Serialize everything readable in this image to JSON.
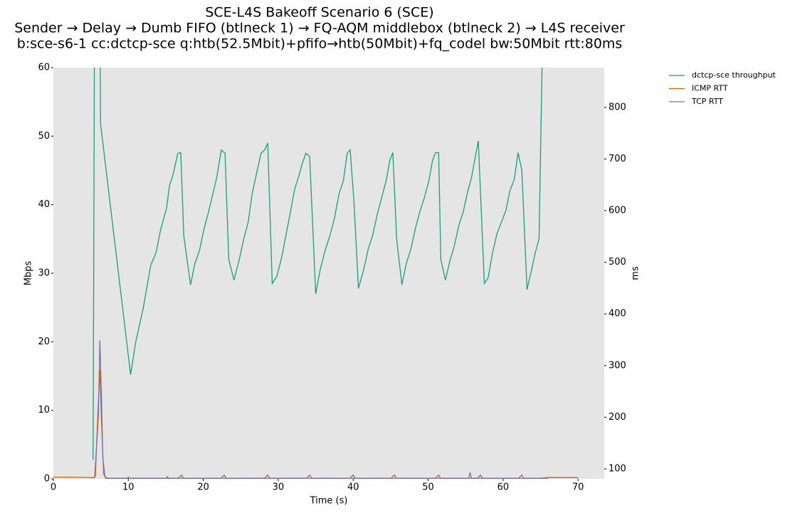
{
  "chart_data": {
    "type": "line",
    "title": [
      "SCE-L4S Bakeoff Scenario 6 (SCE)",
      "Sender → Delay → Dumb FIFO (btlneck 1) → FQ-AQM middlebox (btlneck 2) → L4S receiver",
      "b:sce-s6-1 cc:dctcp-sce q:htb(52.5Mbit)+pfifo→htb(50Mbit)+fq_codel bw:50Mbit rtt:80ms"
    ],
    "xlabel": "Time (s)",
    "ylabel": "Mbps",
    "y2label": "ms",
    "xlim": [
      0,
      73.5
    ],
    "ylim": [
      0,
      60
    ],
    "y2lim": [
      80.7,
      877
    ],
    "xticks": [
      0,
      10,
      20,
      30,
      40,
      50,
      60,
      70
    ],
    "yticks": [
      0,
      10,
      20,
      30,
      40,
      50,
      60
    ],
    "y2ticks": [
      100,
      200,
      300,
      400,
      500,
      600,
      700,
      800
    ],
    "legend": "outside-right",
    "series": [
      {
        "name": "dctcp-sce throughput",
        "color": "#1b9e77",
        "axis": "y",
        "x": [
          5.3,
          5.5,
          6.2,
          6.3,
          10.3,
          11,
          12,
          13,
          13.7,
          14.3,
          15.1,
          15.5,
          16,
          16.6,
          17.0,
          17.4,
          18.3,
          18.9,
          19.5,
          20.1,
          20.6,
          21.2,
          21.8,
          22.4,
          22.9,
          23.4,
          24.1,
          24.8,
          25.4,
          26,
          26.5,
          27.1,
          27.7,
          28.2,
          28.6,
          29.2,
          29.8,
          30.4,
          31,
          31.6,
          32.2,
          32.7,
          33.2,
          33.7,
          34.2,
          35.0,
          35.6,
          36.3,
          36.9,
          37.5,
          38.1,
          38.7,
          39.2,
          39.6,
          40.1,
          40.7,
          41.4,
          42,
          42.6,
          43.2,
          43.8,
          44.4,
          44.9,
          45.3,
          45.8,
          46.5,
          47.1,
          47.7,
          48.3,
          48.9,
          49.5,
          50.1,
          50.6,
          51.0,
          51.4,
          51.7,
          52.3,
          52.9,
          53.5,
          54.1,
          54.7,
          55.3,
          55.8,
          56.3,
          56.7,
          57.5,
          58.0,
          58.6,
          59.2,
          59.8,
          60.4,
          60.9,
          61.5,
          62.0,
          62.5,
          63.2,
          63.8,
          64.3,
          64.8,
          65.2,
          65.5
        ],
        "values": [
          2.8,
          70,
          70,
          51.8,
          15.2,
          20,
          25,
          31.2,
          33,
          36.3,
          39.5,
          42.8,
          44.5,
          47.5,
          47.6,
          35.5,
          28.3,
          31.5,
          33.3,
          36.5,
          38.5,
          41.2,
          44,
          48,
          47.5,
          32,
          29,
          32,
          35,
          37.5,
          41.5,
          44.5,
          47.5,
          48,
          49,
          28.5,
          29.5,
          32,
          35.3,
          38.8,
          42.3,
          44,
          46,
          47.5,
          47,
          27,
          30.5,
          33.5,
          35.5,
          38,
          41.5,
          43.5,
          47.5,
          48,
          40.5,
          27.8,
          30.5,
          33.5,
          35.5,
          38.5,
          41,
          43.5,
          46.5,
          47.6,
          35,
          28.3,
          31.5,
          33.5,
          36.5,
          39,
          41,
          43.5,
          46.5,
          47.6,
          47.6,
          32,
          29,
          31.8,
          34,
          37,
          39,
          42,
          44,
          47,
          49.3,
          28.5,
          29.3,
          33,
          35.8,
          37.5,
          39.2,
          42,
          43.7,
          47.6,
          45,
          27.6,
          30.5,
          33,
          35,
          60,
          70
        ]
      },
      {
        "name": "ICMP RTT",
        "color": "#d95f02",
        "axis": "y2",
        "x": [
          0,
          2,
          5.3,
          5.6,
          6.0,
          6.2,
          6.4,
          6.7,
          7,
          20,
          40,
          60,
          65,
          66,
          70
        ],
        "values": [
          84,
          84,
          83,
          86,
          230,
          292,
          200,
          90,
          82,
          82,
          82,
          82,
          82,
          83,
          83
        ]
      },
      {
        "name": "TCP RTT",
        "color": "#7570b3",
        "axis": "y2",
        "x": [
          5.5,
          6.0,
          6.2,
          6.4,
          6.6,
          6.9,
          7.5,
          9.8,
          10,
          10.2,
          15,
          15.2,
          15.4,
          16.6,
          17.1,
          17.4,
          22.3,
          22.8,
          23.1,
          28.1,
          28.6,
          28.9,
          33.7,
          34.2,
          34.5,
          39.5,
          40,
          40.3,
          45,
          45.5,
          45.8,
          50.9,
          51.4,
          51.7,
          55.4,
          55.6,
          55.8,
          56.5,
          57,
          57.3,
          62,
          62.5,
          62.8,
          66
        ],
        "values": [
          82,
          200,
          349,
          250,
          120,
          84,
          81,
          81,
          84,
          81,
          81,
          85,
          81,
          81,
          88,
          81,
          81,
          88,
          81,
          81,
          88,
          81,
          81,
          88,
          81,
          81,
          88,
          81,
          81,
          88,
          81,
          81,
          88,
          81,
          81,
          93,
          81,
          81,
          88,
          81,
          81,
          88,
          81,
          81
        ]
      }
    ]
  }
}
